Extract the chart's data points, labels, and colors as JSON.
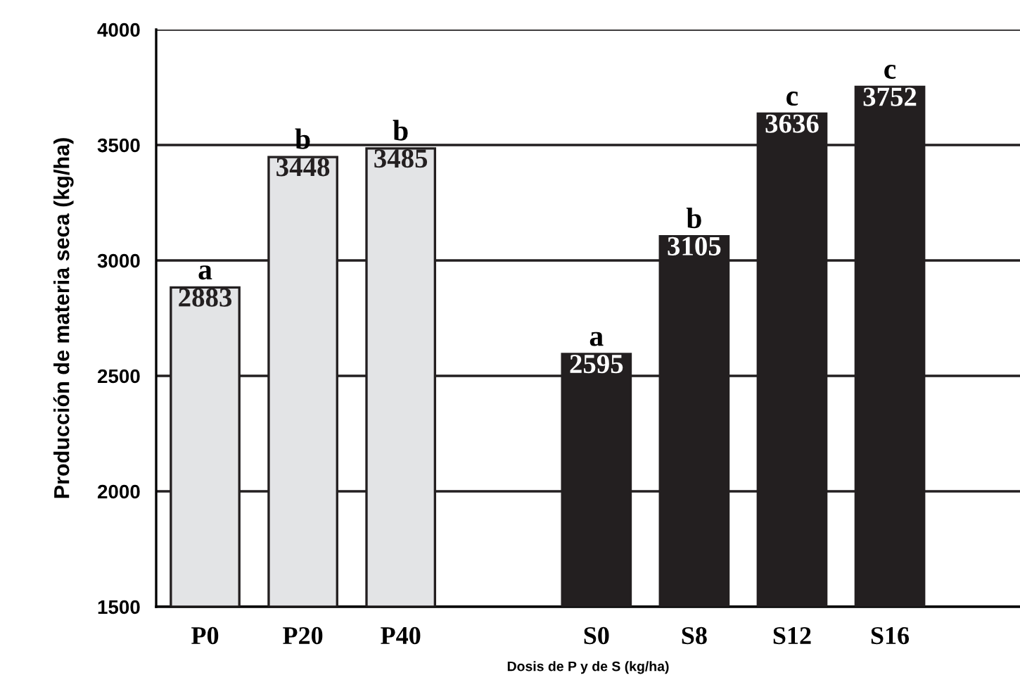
{
  "chart_data": {
    "type": "bar",
    "xlabel": "Dosis de P y de S (kg/ha)",
    "ylabel": "Producción de materia seca (kg/ha)",
    "categories": [
      "P0",
      "P20",
      "P40",
      null,
      "S0",
      "S8",
      "S12",
      "S16"
    ],
    "values": [
      2883,
      3448,
      3485,
      null,
      2595,
      3105,
      3636,
      3752
    ],
    "colors": [
      "#e3e4e6",
      "#e3e4e6",
      "#e3e4e6",
      null,
      "#231f20",
      "#231f20",
      "#231f20",
      "#231f20"
    ],
    "data_labels": true,
    "ylim": [
      1500,
      4000
    ],
    "yticks": [
      1500,
      2000,
      2500,
      3000,
      3500,
      4000
    ],
    "grid": "y",
    "annotations": [
      {
        "text": "a",
        "x": "P0",
        "y": 2883
      },
      {
        "text": "b",
        "x": "P20",
        "y": 3448
      },
      {
        "text": "b",
        "x": "P40",
        "y": 3485
      },
      {
        "text": "a",
        "x": "S0",
        "y": 2595
      },
      {
        "text": "b",
        "x": "S8",
        "y": 3105
      },
      {
        "text": "c",
        "x": "S12",
        "y": 3636
      },
      {
        "text": "c",
        "x": "S16",
        "y": 3752
      }
    ]
  }
}
